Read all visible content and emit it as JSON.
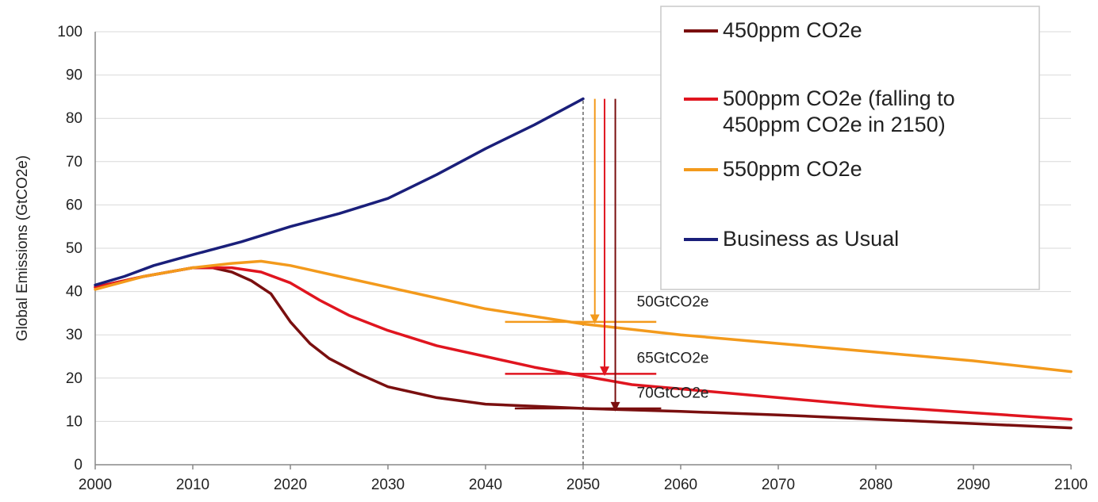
{
  "chart_data": {
    "type": "line",
    "ylabel": "Global Emissions (GtCO2e)",
    "xlabel": "",
    "xlim": [
      2000,
      2100
    ],
    "ylim": [
      0,
      100
    ],
    "x_ticks": [
      "2000",
      "2010",
      "2020",
      "2030",
      "2040",
      "2050",
      "2060",
      "2070",
      "2080",
      "2090",
      "2100"
    ],
    "y_ticks": [
      "0",
      "10",
      "20",
      "30",
      "40",
      "50",
      "60",
      "70",
      "80",
      "90",
      "100"
    ],
    "grid": "horizontal",
    "legend_position": "top-right",
    "series": [
      {
        "name": "450ppm CO2e",
        "color": "#7a0f0f",
        "points": [
          [
            2000,
            41
          ],
          [
            2005,
            43.5
          ],
          [
            2010,
            45.5
          ],
          [
            2012,
            45.5
          ],
          [
            2014,
            44.5
          ],
          [
            2016,
            42.5
          ],
          [
            2018,
            39.5
          ],
          [
            2020,
            33
          ],
          [
            2022,
            28
          ],
          [
            2024,
            24.5
          ],
          [
            2027,
            21
          ],
          [
            2030,
            18
          ],
          [
            2035,
            15.5
          ],
          [
            2040,
            14
          ],
          [
            2045,
            13.5
          ],
          [
            2050,
            13
          ],
          [
            2060,
            12.3
          ],
          [
            2070,
            11.5
          ],
          [
            2080,
            10.5
          ],
          [
            2090,
            9.5
          ],
          [
            2100,
            8.5
          ]
        ]
      },
      {
        "name": "500ppm CO2e (falling to 450ppm CO2e in 2150)",
        "color": "#e0151f",
        "points": [
          [
            2000,
            41
          ],
          [
            2005,
            43.5
          ],
          [
            2010,
            45.5
          ],
          [
            2014,
            45.5
          ],
          [
            2017,
            44.5
          ],
          [
            2020,
            42
          ],
          [
            2023,
            38
          ],
          [
            2026,
            34.5
          ],
          [
            2030,
            31
          ],
          [
            2035,
            27.5
          ],
          [
            2040,
            25
          ],
          [
            2045,
            22.5
          ],
          [
            2050,
            20.5
          ],
          [
            2055,
            18.5
          ],
          [
            2060,
            17.5
          ],
          [
            2070,
            15.5
          ],
          [
            2080,
            13.5
          ],
          [
            2090,
            12
          ],
          [
            2100,
            10.5
          ]
        ]
      },
      {
        "name": "550ppm CO2e",
        "color": "#f39a1c",
        "points": [
          [
            2000,
            40.5
          ],
          [
            2005,
            43.5
          ],
          [
            2010,
            45.5
          ],
          [
            2014,
            46.5
          ],
          [
            2017,
            47
          ],
          [
            2020,
            46
          ],
          [
            2025,
            43.5
          ],
          [
            2030,
            41
          ],
          [
            2040,
            36
          ],
          [
            2050,
            32.5
          ],
          [
            2060,
            30
          ],
          [
            2070,
            28
          ],
          [
            2080,
            26
          ],
          [
            2090,
            24
          ],
          [
            2100,
            21.5
          ]
        ]
      },
      {
        "name": "Business as Usual",
        "color": "#1a1f7a",
        "points": [
          [
            2000,
            41.5
          ],
          [
            2003,
            43.5
          ],
          [
            2006,
            46
          ],
          [
            2010,
            48.5
          ],
          [
            2015,
            51.5
          ],
          [
            2020,
            55
          ],
          [
            2025,
            58
          ],
          [
            2030,
            61.5
          ],
          [
            2035,
            67
          ],
          [
            2040,
            73
          ],
          [
            2045,
            78.5
          ],
          [
            2050,
            84.5
          ]
        ]
      }
    ],
    "annotations": [
      {
        "text": "50GtCO2e",
        "x": 2055.5,
        "y": 36.5
      },
      {
        "text": "65GtCO2e",
        "x": 2055.5,
        "y": 23.5
      },
      {
        "text": "70GtCO2e",
        "x": 2055.5,
        "y": 15.5
      }
    ],
    "reference_lines": [
      {
        "kind": "vertical-dashed",
        "x": 2050,
        "y_from": 0,
        "y_to": 84.5,
        "color": "#666666"
      },
      {
        "kind": "horizontal",
        "x_from": 2042,
        "x_to": 2057.5,
        "y": 33,
        "color": "#f39a1c"
      },
      {
        "kind": "horizontal",
        "x_from": 2042,
        "x_to": 2057.5,
        "y": 21,
        "color": "#e0151f"
      },
      {
        "kind": "horizontal",
        "x_from": 2043,
        "x_to": 2058,
        "y": 13,
        "color": "#7a0f0f"
      }
    ],
    "arrows": [
      {
        "x": 2051.2,
        "y_from": 84.5,
        "y_to": 32.5,
        "color": "#f39a1c"
      },
      {
        "x": 2052.2,
        "y_from": 84.5,
        "y_to": 20.5,
        "color": "#e0151f"
      },
      {
        "x": 2053.3,
        "y_from": 84.5,
        "y_to": 12.3,
        "color": "#7a0f0f"
      }
    ]
  },
  "legend": {
    "items": [
      {
        "lines": [
          "450ppm CO2e"
        ],
        "color": "#7a0f0f"
      },
      {
        "lines": [
          "500ppm CO2e (falling to",
          "450ppm CO2e in 2150)"
        ],
        "color": "#e0151f"
      },
      {
        "lines": [
          "550ppm CO2e"
        ],
        "color": "#f39a1c"
      },
      {
        "lines": [
          "Business as Usual"
        ],
        "color": "#1a1f7a"
      }
    ]
  }
}
